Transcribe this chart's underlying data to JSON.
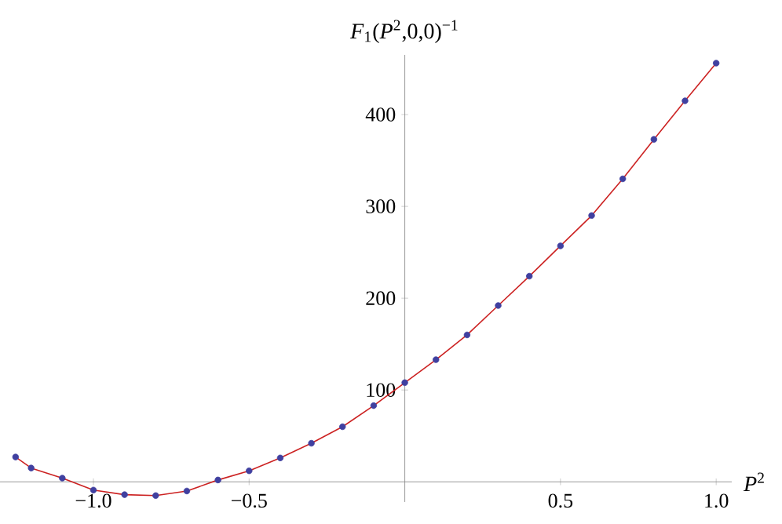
{
  "chart_data": {
    "type": "line",
    "xlabel": "*P*$^{2}$",
    "ylabel": "*F*$_{1}$(*P*$^{2}$,0,0)$^{−1}$",
    "x": [
      -1.25,
      -1.2,
      -1.1,
      -1.0,
      -0.9,
      -0.8,
      -0.7,
      -0.6,
      -0.5,
      -0.4,
      -0.3,
      -0.2,
      -0.1,
      0,
      0.1,
      0.2,
      0.3,
      0.4,
      0.5,
      0.6,
      0.7,
      0.8,
      0.9,
      1.0
    ],
    "series": [
      {
        "color": "#cc2222",
        "marker": "none",
        "values": [
          27,
          15,
          4,
          -9,
          -14,
          -15,
          -10,
          2,
          12,
          26,
          42,
          60,
          83,
          108,
          133,
          160,
          192,
          224,
          257,
          290,
          330,
          373,
          415,
          456
        ]
      },
      {
        "type": "scatter",
        "color": "#4040a0",
        "marker": "circle",
        "values": [
          27,
          15,
          4,
          -9,
          -14,
          -15,
          -10,
          2,
          12,
          26,
          42,
          60,
          83,
          108,
          133,
          160,
          192,
          224,
          257,
          290,
          330,
          373,
          415,
          456
        ]
      }
    ],
    "xlim": [
      -1.3,
      1.05
    ],
    "ylim": [
      -22,
      465
    ],
    "xticks": [
      {
        "value": -1.0,
        "label": "−1.0"
      },
      {
        "value": -0.5,
        "label": "−0.5"
      },
      0.5,
      {
        "value": 1.0,
        "label": "1.0"
      }
    ],
    "yticks": [
      100,
      200,
      300,
      400
    ],
    "grid": false
  }
}
